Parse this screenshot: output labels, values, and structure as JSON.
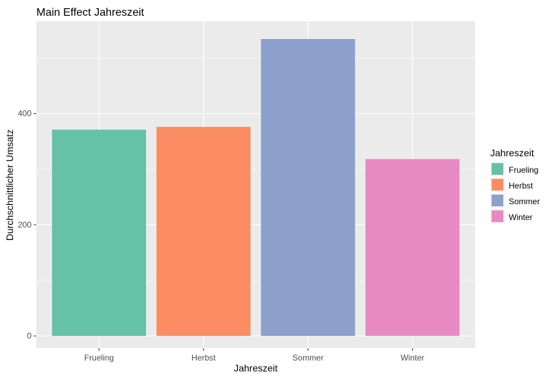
{
  "chart_data": {
    "type": "bar",
    "title": "Main Effect Jahreszeit",
    "xlabel": "Jahreszeit",
    "ylabel": "Durchschnittlicher Umsatz",
    "categories": [
      "Frueling",
      "Herbst",
      "Sommer",
      "Winter"
    ],
    "values": [
      371,
      376,
      534,
      318
    ],
    "colors": [
      "#66c2a5",
      "#fc8d62",
      "#8da0cb",
      "#e78ac3"
    ],
    "ylim": [
      -22,
      566
    ],
    "yticks": [
      0,
      200,
      400
    ],
    "grid": true,
    "legend": {
      "title": "Jahreszeit",
      "position": "right",
      "entries": [
        "Frueling",
        "Herbst",
        "Sommer",
        "Winter"
      ]
    }
  }
}
